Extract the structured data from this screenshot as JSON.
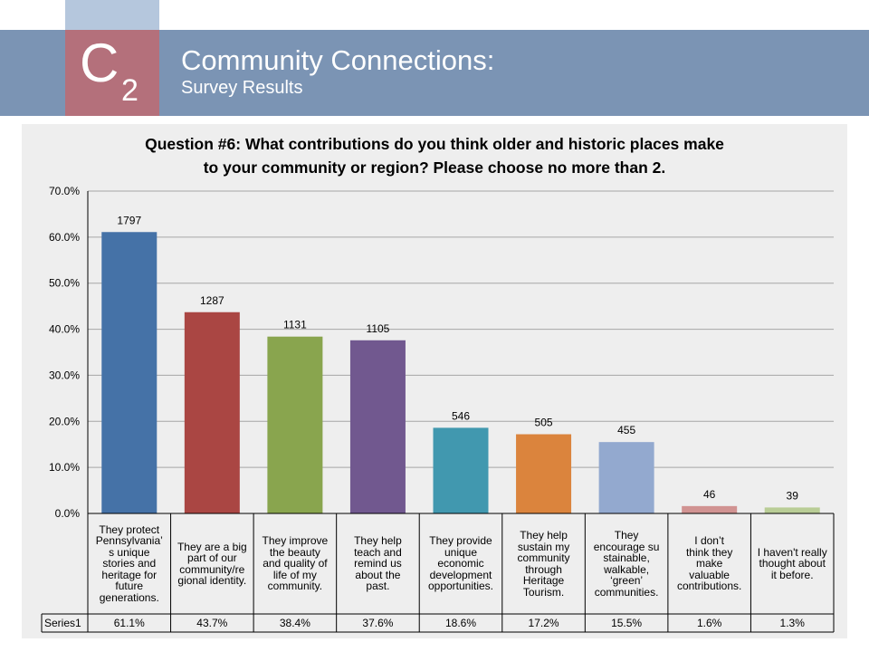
{
  "header": {
    "logo_letter": "C",
    "logo_subscript": "2",
    "title": "Community Connections:",
    "subtitle": "Survey Results"
  },
  "colors": {
    "header_band": "#7b94b4",
    "logo_box": "#b4707b",
    "top_tab": "#b5c7dd",
    "panel": "#eeeeee"
  },
  "chart_data": {
    "type": "bar",
    "title_lines": [
      "Question #6: What contributions do you think older and historic places make",
      "to your community or region? Please choose no more than 2."
    ],
    "categories": [
      "They protect Pennsylvania’s unique stories and heritage for future generations.",
      "They are a big part of our community/regional identity.",
      "They improve the beauty and quality of life of my community.",
      "They help teach and remind us about the past.",
      "They provide unique economic development opportunities.",
      "They help sustain my community through Heritage Tourism.",
      "They encourage sustainable, walkable, ‘green’ communities.",
      "I don’t think they make valuable contributions.",
      "I haven't really thought about it before."
    ],
    "category_lines": [
      [
        "They protect",
        "Pennsylvania’",
        "s unique",
        "stories and",
        "heritage for",
        "future",
        "generations."
      ],
      [
        "They are a big",
        "part of our",
        "community/re",
        "gional identity."
      ],
      [
        "They improve",
        "the beauty",
        "and quality of",
        "life of my",
        "community."
      ],
      [
        "They help",
        "teach and",
        "remind us",
        "about the",
        "past."
      ],
      [
        "They provide",
        "unique",
        "economic",
        "development",
        "opportunities."
      ],
      [
        "They help",
        "sustain my",
        "community",
        "through",
        "Heritage",
        "Tourism."
      ],
      [
        "They",
        "encourage su",
        "stainable,",
        "walkable,",
        "‘green’",
        "communities."
      ],
      [
        "I don’t",
        "think they",
        "make",
        "valuable",
        "contributions."
      ],
      [
        "I haven't really",
        "thought about",
        "it before."
      ]
    ],
    "series": [
      {
        "name": "Series1",
        "values": [
          61.1,
          43.7,
          38.4,
          37.6,
          18.6,
          17.2,
          15.5,
          1.6,
          1.3
        ],
        "value_labels": [
          "61.1%",
          "43.7%",
          "38.4%",
          "37.6%",
          "18.6%",
          "17.2%",
          "15.5%",
          "1.6%",
          "1.3%"
        ]
      }
    ],
    "data_labels": [
      "1797",
      "1287",
      "1131",
      "1105",
      "546",
      "505",
      "455",
      "46",
      "39"
    ],
    "bar_colors": [
      "#4572a7",
      "#aa4643",
      "#89a54e",
      "#71588f",
      "#4198af",
      "#db843d",
      "#93a9cf",
      "#d19392",
      "#b9cd96"
    ],
    "ylim": [
      0,
      70
    ],
    "yticks": [
      "0.0%",
      "10.0%",
      "20.0%",
      "30.0%",
      "40.0%",
      "50.0%",
      "60.0%",
      "70.0%"
    ],
    "grid": true,
    "legend": "none",
    "data_table": true
  }
}
